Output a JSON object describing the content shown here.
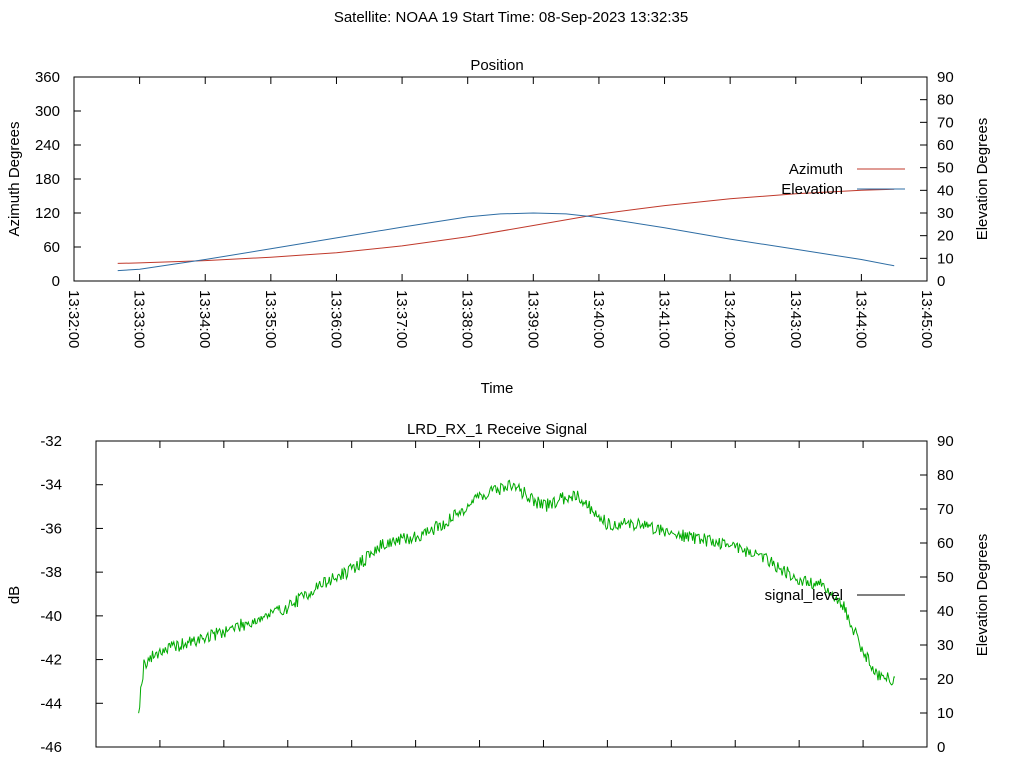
{
  "page": {
    "title": "Satellite: NOAA 19    Start Time: 08-Sep-2023 13:32:35"
  },
  "chart_data": [
    {
      "type": "line",
      "title": "Position",
      "xlabel": "Time",
      "ylabel": "Azimuth Degrees",
      "y2label": "Elevation Degrees",
      "xlim": [
        "13:32:00",
        "13:45:00"
      ],
      "ylim": [
        0,
        360
      ],
      "y2lim": [
        0,
        90
      ],
      "x_ticks": [
        "13:32:00",
        "13:33:00",
        "13:34:00",
        "13:35:00",
        "13:36:00",
        "13:37:00",
        "13:38:00",
        "13:39:00",
        "13:40:00",
        "13:41:00",
        "13:42:00",
        "13:43:00",
        "13:44:00",
        "13:45:00"
      ],
      "y_ticks": [
        0,
        60,
        120,
        180,
        240,
        300,
        360
      ],
      "y2_ticks": [
        0,
        10,
        20,
        30,
        40,
        50,
        60,
        70,
        80,
        90
      ],
      "legend_position": "right",
      "grid": false,
      "series": [
        {
          "name": "Azimuth",
          "axis": "y",
          "color": "#c0392b",
          "x": [
            "13:32:40",
            "13:33:00",
            "13:34:00",
            "13:35:00",
            "13:36:00",
            "13:37:00",
            "13:38:00",
            "13:39:00",
            "13:40:00",
            "13:41:00",
            "13:42:00",
            "13:43:00",
            "13:44:00",
            "13:44:30"
          ],
          "values": [
            31,
            32,
            36,
            42,
            50,
            62,
            78,
            98,
            118,
            133,
            145,
            154,
            160,
            162
          ]
        },
        {
          "name": "Elevation",
          "axis": "y2",
          "color": "#2e6da4",
          "x": [
            "13:32:40",
            "13:33:00",
            "13:34:00",
            "13:35:00",
            "13:36:00",
            "13:37:00",
            "13:38:00",
            "13:38:30",
            "13:39:00",
            "13:39:30",
            "13:40:00",
            "13:41:00",
            "13:42:00",
            "13:43:00",
            "13:44:00",
            "13:44:30"
          ],
          "values": [
            4.6,
            5.2,
            9.5,
            14.2,
            19.0,
            23.8,
            28.3,
            29.6,
            30.0,
            29.6,
            28.0,
            23.5,
            18.5,
            14.0,
            9.5,
            6.7
          ]
        }
      ]
    },
    {
      "type": "line",
      "title": "LRD_RX_1 Receive Signal",
      "ylabel": "dB",
      "y2label": "Elevation Degrees",
      "xlim": [
        "13:32:00",
        "13:45:00"
      ],
      "ylim": [
        -46,
        -32
      ],
      "y2lim": [
        0,
        90
      ],
      "y_ticks": [
        -46,
        -44,
        -42,
        -40,
        -38,
        -36,
        -34,
        -32
      ],
      "y2_ticks": [
        0,
        10,
        20,
        30,
        40,
        50,
        60,
        70,
        80,
        90
      ],
      "legend_position": "right",
      "grid": false,
      "series": [
        {
          "name": "signal_level",
          "axis": "y",
          "color": "#00aa00",
          "x": [
            "13:32:40",
            "13:32:45",
            "13:33:00",
            "13:33:30",
            "13:34:00",
            "13:34:30",
            "13:35:00",
            "13:35:30",
            "13:36:00",
            "13:36:30",
            "13:37:00",
            "13:37:30",
            "13:38:00",
            "13:38:30",
            "13:39:00",
            "13:39:30",
            "13:40:00",
            "13:40:30",
            "13:41:00",
            "13:41:30",
            "13:42:00",
            "13:42:30",
            "13:43:00",
            "13:43:20",
            "13:43:40",
            "13:44:00",
            "13:44:15",
            "13:44:30"
          ],
          "values": [
            -44.3,
            -42.2,
            -41.6,
            -41.2,
            -40.7,
            -40.2,
            -39.6,
            -38.6,
            -37.9,
            -36.7,
            -36.4,
            -35.7,
            -34.5,
            -34.0,
            -35.0,
            -34.4,
            -35.8,
            -35.8,
            -36.2,
            -36.5,
            -36.8,
            -37.4,
            -38.4,
            -38.6,
            -39.4,
            -41.6,
            -42.8,
            -42.9
          ]
        }
      ]
    }
  ]
}
